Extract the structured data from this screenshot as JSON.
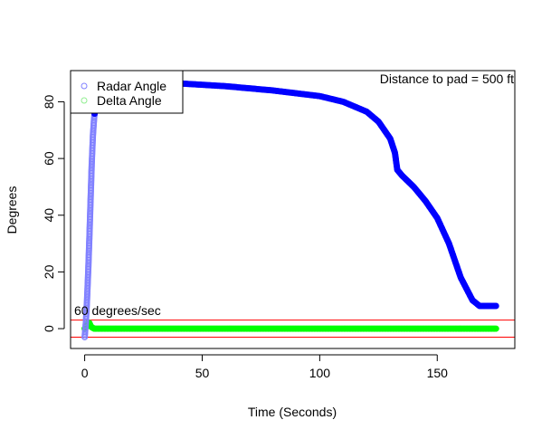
{
  "chart_data": {
    "type": "scatter",
    "title": "",
    "xlabel": "Time (Seconds)",
    "ylabel": "Degrees",
    "xlim": [
      -6,
      183
    ],
    "ylim": [
      -7,
      91
    ],
    "xticks": [
      0,
      50,
      100,
      150
    ],
    "yticks": [
      0,
      20,
      40,
      60,
      80
    ],
    "grid": false,
    "legend_position": "top-left",
    "annotations": {
      "distance_label": "Distance to pad =  500 ft",
      "threshold_label": "60 degrees/sec"
    },
    "threshold_lines": [
      {
        "y": 3,
        "color": "#ff0000"
      },
      {
        "y": -3,
        "color": "#ff0000"
      }
    ],
    "series": [
      {
        "name": "Radar Angle",
        "color": "#0000ff",
        "legend_color": "#8080ff",
        "curve": [
          [
            0,
            -3
          ],
          [
            0.5,
            2
          ],
          [
            1,
            10
          ],
          [
            1.5,
            20
          ],
          [
            2,
            32
          ],
          [
            2.5,
            45
          ],
          [
            3,
            58
          ],
          [
            3.5,
            68
          ],
          [
            4,
            74
          ],
          [
            4.5,
            78
          ],
          [
            5,
            82
          ],
          [
            6,
            84
          ],
          [
            8,
            85.5
          ],
          [
            12,
            86.5
          ],
          [
            20,
            87
          ],
          [
            40,
            86.5
          ],
          [
            60,
            85.5
          ],
          [
            80,
            84
          ],
          [
            100,
            82
          ],
          [
            110,
            80
          ],
          [
            120,
            76.5
          ],
          [
            125,
            73
          ],
          [
            130,
            67
          ],
          [
            132,
            62
          ],
          [
            133,
            56
          ],
          [
            135,
            54
          ],
          [
            140,
            50
          ],
          [
            145,
            45
          ],
          [
            150,
            39
          ],
          [
            155,
            30
          ],
          [
            160,
            18
          ],
          [
            165,
            10
          ],
          [
            168,
            8
          ],
          [
            175,
            8
          ]
        ]
      },
      {
        "name": "Delta Angle",
        "color": "#00ff00",
        "legend_color": "#90ee90",
        "curve": [
          [
            0,
            0
          ],
          [
            1,
            1
          ],
          [
            1.5,
            2
          ],
          [
            2,
            2
          ],
          [
            2.5,
            1
          ],
          [
            3,
            0.5
          ],
          [
            4,
            0
          ],
          [
            10,
            0
          ],
          [
            175,
            0
          ]
        ]
      }
    ]
  }
}
